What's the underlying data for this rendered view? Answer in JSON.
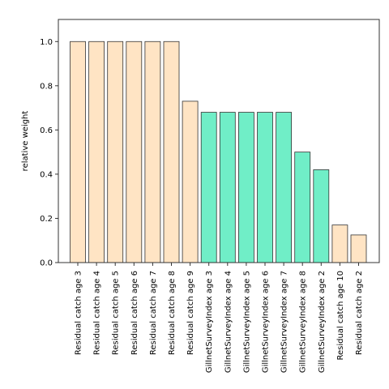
{
  "chart_data": {
    "type": "bar",
    "ylabel": "relative weight",
    "xlabel": "",
    "ylim": [
      0,
      1.1
    ],
    "yticks": [
      "0.0",
      "0.2",
      "0.4",
      "0.6",
      "0.8",
      "1.0"
    ],
    "grid": false,
    "colors": {
      "residual": "#FFE4C4",
      "survey": "#70EEC7",
      "edge": "#333333"
    },
    "categories": [
      "Residual catch age 3",
      "Residual catch age 4",
      "Residual catch age 5",
      "Residual catch age 6",
      "Residual catch age 7",
      "Residual catch age 8",
      "Residual catch age 9",
      "GillnetSurveyIndex age 3",
      "GillnetSurveyIndex age 4",
      "GillnetSurveyIndex age 5",
      "GillnetSurveyIndex age 6",
      "GillnetSurveyIndex age 7",
      "GillnetSurveyIndex age 8",
      "GillnetSurveyIndex age 2",
      "Residual catch age 10",
      "Residual catch age 2"
    ],
    "values": [
      1.0,
      1.0,
      1.0,
      1.0,
      1.0,
      1.0,
      0.73,
      0.68,
      0.68,
      0.68,
      0.68,
      0.68,
      0.5,
      0.42,
      0.17,
      0.125
    ],
    "groups": [
      "residual",
      "residual",
      "residual",
      "residual",
      "residual",
      "residual",
      "residual",
      "survey",
      "survey",
      "survey",
      "survey",
      "survey",
      "survey",
      "survey",
      "residual",
      "residual"
    ]
  }
}
